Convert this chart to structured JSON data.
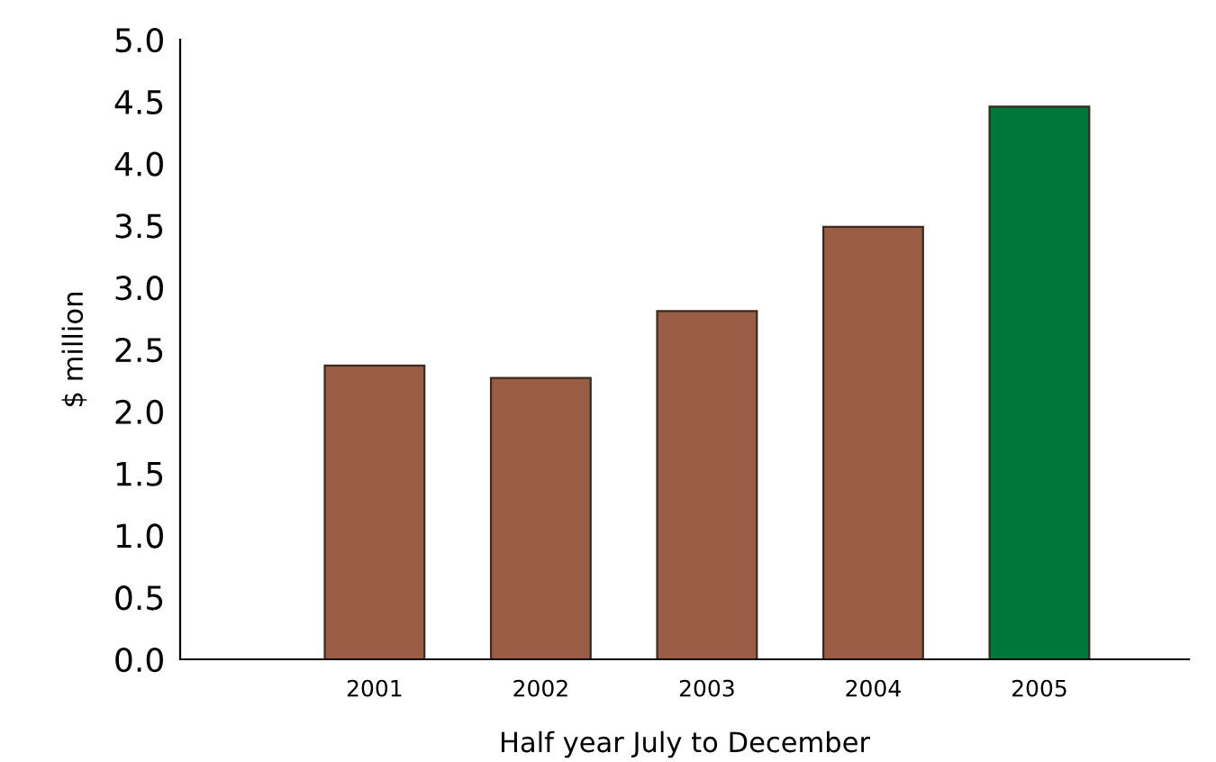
{
  "chart_data": {
    "type": "bar",
    "xlabel": "Half year July to December",
    "ylabel": "$ million",
    "categories": [
      "2001",
      "2002",
      "2003",
      "2004",
      "2005"
    ],
    "values": [
      2.37,
      2.27,
      2.81,
      3.49,
      4.46
    ],
    "colors": [
      "#995c44",
      "#995c44",
      "#995c44",
      "#995c44",
      "#00773a"
    ],
    "ylim": [
      0,
      5
    ],
    "yticks": [
      {
        "value": 0,
        "label": "0.0"
      },
      {
        "value": 0.5,
        "label": "0.5"
      },
      {
        "value": 1,
        "label": "1.0"
      },
      {
        "value": 1.5,
        "label": "1.5"
      },
      {
        "value": 2,
        "label": "2.0"
      },
      {
        "value": 2.5,
        "label": "2.5"
      },
      {
        "value": 3,
        "label": "3.0"
      },
      {
        "value": 3.5,
        "label": "3.5"
      },
      {
        "value": 4,
        "label": "4.0"
      },
      {
        "value": 4.5,
        "label": "4.5"
      },
      {
        "value": 5,
        "label": "5.0"
      }
    ],
    "grid": false
  }
}
